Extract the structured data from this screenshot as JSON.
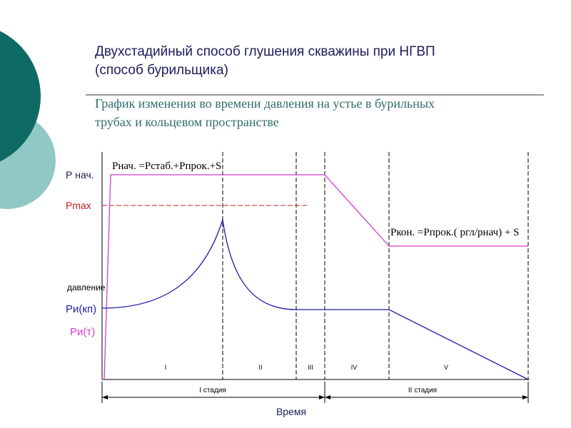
{
  "header": {
    "title": [
      "Двухстадийный способ глушения скважины при НГВП",
      "(способ бурильщика)"
    ],
    "subtitle": [
      "График изменения во времени давления на устье в бурильных",
      "трубах и кольцевом пространстве"
    ]
  },
  "diagram": {
    "y_labels": {
      "p_start": "Р нач.",
      "p_max": "Pmax",
      "axis": "давление",
      "p_annulus": "Ри(кп)",
      "p_pipe": "Ри(т)"
    },
    "formulas": {
      "start": "Рнач. =Рстаб.+Рпрок.+S",
      "end": "Ркон. =Рпрок.( ргл/рнач) + S"
    },
    "phases": [
      "I",
      "II",
      "III",
      "IV",
      "V"
    ],
    "stages": [
      "I стадия",
      "II стадия"
    ],
    "x_label": "Время"
  }
}
